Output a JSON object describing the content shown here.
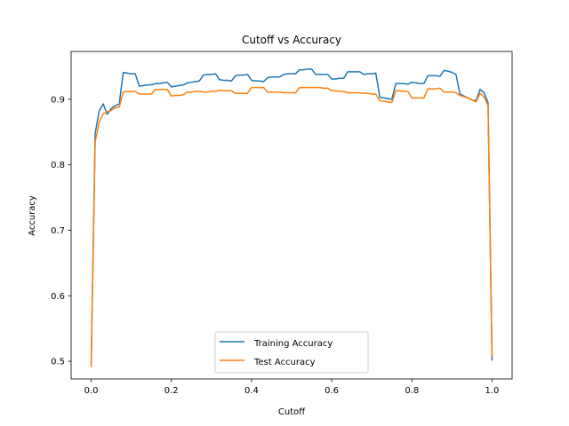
{
  "chart_data": {
    "type": "line",
    "title": "Cutoff vs Accuracy",
    "xlabel": "Cutoff",
    "ylabel": "Accuracy",
    "xlim": [
      -0.05,
      1.05
    ],
    "ylim": [
      0.473,
      0.973
    ],
    "xticks": [
      0.0,
      0.2,
      0.4,
      0.6,
      0.8,
      1.0
    ],
    "xtick_labels": [
      "0.0",
      "0.2",
      "0.4",
      "0.6",
      "0.8",
      "1.0"
    ],
    "yticks": [
      0.5,
      0.6,
      0.7,
      0.8,
      0.9
    ],
    "ytick_labels": [
      "0.5",
      "0.6",
      "0.7",
      "0.8",
      "0.9"
    ],
    "grid": false,
    "legend_position": "lower center",
    "x": [
      0.0,
      0.01,
      0.02,
      0.03,
      0.04,
      0.05,
      0.06,
      0.07,
      0.08,
      0.09,
      0.1,
      0.11,
      0.12,
      0.13,
      0.14,
      0.15,
      0.16,
      0.17,
      0.18,
      0.19,
      0.2,
      0.21,
      0.22,
      0.23,
      0.24,
      0.25,
      0.26,
      0.27,
      0.28,
      0.29,
      0.3,
      0.31,
      0.32,
      0.33,
      0.34,
      0.35,
      0.36,
      0.37,
      0.38,
      0.39,
      0.4,
      0.41,
      0.42,
      0.43,
      0.44,
      0.45,
      0.46,
      0.47,
      0.48,
      0.49,
      0.5,
      0.51,
      0.52,
      0.53,
      0.54,
      0.55,
      0.56,
      0.57,
      0.58,
      0.59,
      0.6,
      0.61,
      0.62,
      0.63,
      0.64,
      0.65,
      0.66,
      0.67,
      0.68,
      0.69,
      0.7,
      0.71,
      0.72,
      0.73,
      0.74,
      0.75,
      0.76,
      0.77,
      0.78,
      0.79,
      0.8,
      0.81,
      0.82,
      0.83,
      0.84,
      0.85,
      0.86,
      0.87,
      0.88,
      0.89,
      0.9,
      0.91,
      0.92,
      0.93,
      0.94,
      0.95,
      0.96,
      0.97,
      0.98,
      0.99,
      1.0
    ],
    "series": [
      {
        "name": "Training Accuracy",
        "color": "#1f77b4",
        "values": [
          0.497,
          0.848,
          0.882,
          0.893,
          0.877,
          0.886,
          0.89,
          0.893,
          0.941,
          0.94,
          0.939,
          0.939,
          0.92,
          0.921,
          0.922,
          0.922,
          0.924,
          0.924,
          0.925,
          0.926,
          0.919,
          0.92,
          0.921,
          0.922,
          0.925,
          0.926,
          0.927,
          0.928,
          0.937,
          0.938,
          0.938,
          0.939,
          0.93,
          0.929,
          0.929,
          0.928,
          0.936,
          0.937,
          0.937,
          0.938,
          0.929,
          0.928,
          0.928,
          0.927,
          0.933,
          0.934,
          0.934,
          0.934,
          0.938,
          0.939,
          0.939,
          0.939,
          0.945,
          0.945,
          0.946,
          0.946,
          0.938,
          0.938,
          0.938,
          0.938,
          0.931,
          0.931,
          0.932,
          0.932,
          0.942,
          0.942,
          0.942,
          0.942,
          0.938,
          0.939,
          0.939,
          0.94,
          0.903,
          0.902,
          0.901,
          0.9,
          0.924,
          0.924,
          0.924,
          0.923,
          0.926,
          0.925,
          0.924,
          0.924,
          0.936,
          0.936,
          0.936,
          0.935,
          0.944,
          0.943,
          0.941,
          0.938,
          0.908,
          0.905,
          0.902,
          0.899,
          0.898,
          0.915,
          0.91,
          0.895,
          0.502
        ]
      },
      {
        "name": "Test Accuracy",
        "color": "#ff7f0e",
        "values": [
          0.492,
          0.835,
          0.865,
          0.878,
          0.881,
          0.883,
          0.887,
          0.888,
          0.911,
          0.912,
          0.912,
          0.912,
          0.908,
          0.908,
          0.908,
          0.908,
          0.915,
          0.915,
          0.915,
          0.915,
          0.905,
          0.906,
          0.906,
          0.907,
          0.911,
          0.911,
          0.912,
          0.912,
          0.911,
          0.911,
          0.912,
          0.912,
          0.914,
          0.913,
          0.913,
          0.913,
          0.909,
          0.909,
          0.909,
          0.909,
          0.918,
          0.918,
          0.918,
          0.918,
          0.911,
          0.911,
          0.911,
          0.911,
          0.91,
          0.91,
          0.91,
          0.91,
          0.918,
          0.918,
          0.918,
          0.918,
          0.918,
          0.918,
          0.917,
          0.917,
          0.913,
          0.913,
          0.912,
          0.912,
          0.91,
          0.91,
          0.91,
          0.91,
          0.909,
          0.909,
          0.908,
          0.908,
          0.898,
          0.897,
          0.896,
          0.895,
          0.913,
          0.913,
          0.912,
          0.912,
          0.902,
          0.902,
          0.902,
          0.902,
          0.916,
          0.916,
          0.916,
          0.917,
          0.911,
          0.911,
          0.911,
          0.91,
          0.906,
          0.904,
          0.902,
          0.899,
          0.896,
          0.909,
          0.904,
          0.89,
          0.508
        ]
      }
    ]
  }
}
